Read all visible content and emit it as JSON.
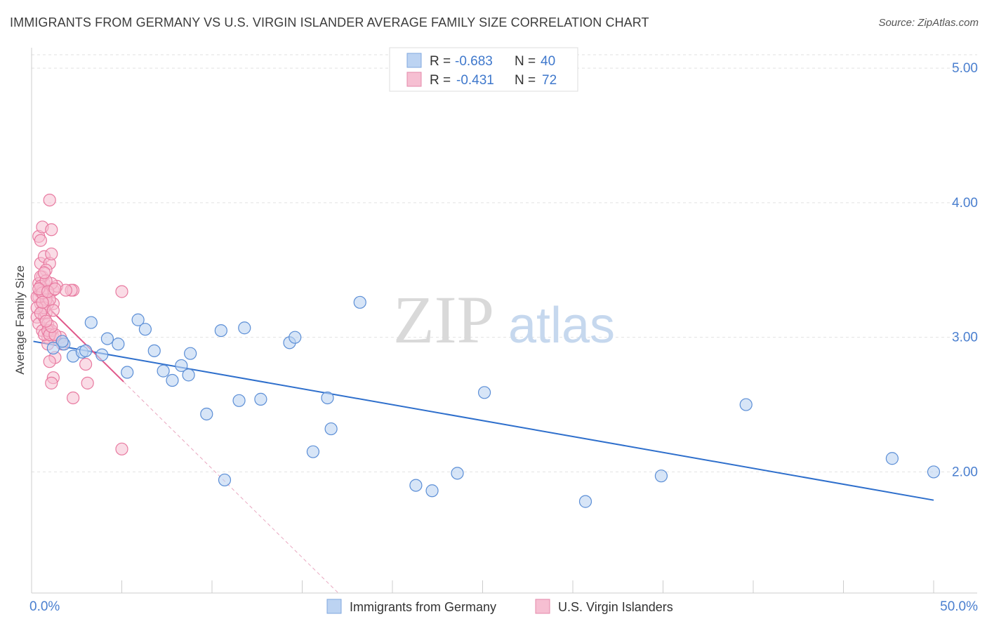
{
  "title": "IMMIGRANTS FROM GERMANY VS U.S. VIRGIN ISLANDER AVERAGE FAMILY SIZE CORRELATION CHART",
  "source": "Source: ZipAtlas.com",
  "watermark": {
    "zip": "ZIP",
    "atlas": "atlas"
  },
  "colors": {
    "blue": "#5b8ed6",
    "blue_fill": "#bcd3f2",
    "blue_line": "#2e6fcc",
    "pink": "#e87aa0",
    "pink_fill": "#f6bfd2",
    "pink_line": "#e0588a",
    "axis_text": "#4a7fcf",
    "grid": "#e2e2e2"
  },
  "legend": {
    "rows": [
      {
        "r_label": "R = ",
        "r_value": "-0.683",
        "n_label": "N = ",
        "n_value": "40"
      },
      {
        "r_label": "R = ",
        "r_value": "-0.431",
        "n_label": "N = ",
        "n_value": "72"
      }
    ]
  },
  "chart_data": {
    "type": "scatter",
    "title": "IMMIGRANTS FROM GERMANY VS U.S. VIRGIN ISLANDER AVERAGE FAMILY SIZE CORRELATION CHART",
    "xlabel": "",
    "ylabel": "Average Family Size",
    "xlim": [
      0,
      50
    ],
    "ylim": [
      1.1,
      5.1
    ],
    "x_tick_labels": [
      "0.0%",
      "50.0%"
    ],
    "y_ticks": [
      2.0,
      3.0,
      4.0,
      5.0
    ],
    "y_tick_labels": [
      "2.00",
      "3.00",
      "4.00",
      "5.00"
    ],
    "grid": true,
    "legend_position": "top-center",
    "series": [
      {
        "name": "Immigrants from Germany",
        "color": "#5b8ed6",
        "r": -0.683,
        "n": 40,
        "trend": {
          "x0": 0.1,
          "y0": 2.97,
          "x1": 50.0,
          "y1": 1.79
        },
        "points": [
          [
            1.8,
            2.95
          ],
          [
            1.7,
            2.97
          ],
          [
            2.3,
            2.86
          ],
          [
            3.3,
            3.11
          ],
          [
            2.8,
            2.89
          ],
          [
            3.9,
            2.87
          ],
          [
            4.2,
            2.99
          ],
          [
            4.8,
            2.95
          ],
          [
            5.3,
            2.74
          ],
          [
            5.9,
            3.13
          ],
          [
            6.3,
            3.06
          ],
          [
            6.8,
            2.9
          ],
          [
            7.3,
            2.75
          ],
          [
            7.8,
            2.68
          ],
          [
            8.3,
            2.79
          ],
          [
            8.7,
            2.72
          ],
          [
            8.8,
            2.88
          ],
          [
            9.7,
            2.43
          ],
          [
            10.5,
            3.05
          ],
          [
            10.7,
            1.94
          ],
          [
            11.5,
            2.53
          ],
          [
            11.8,
            3.07
          ],
          [
            12.7,
            2.54
          ],
          [
            14.3,
            2.96
          ],
          [
            14.6,
            3.0
          ],
          [
            15.6,
            2.15
          ],
          [
            16.4,
            2.55
          ],
          [
            16.6,
            2.32
          ],
          [
            18.2,
            3.26
          ],
          [
            21.3,
            1.9
          ],
          [
            22.2,
            1.86
          ],
          [
            23.6,
            1.99
          ],
          [
            25.1,
            2.59
          ],
          [
            30.7,
            1.78
          ],
          [
            34.9,
            1.97
          ],
          [
            39.6,
            2.5
          ],
          [
            47.7,
            2.1
          ],
          [
            50.0,
            2.0
          ],
          [
            1.2,
            2.92
          ],
          [
            3.0,
            2.9
          ]
        ]
      },
      {
        "name": "U.S. Virgin Islanders",
        "color": "#e87aa0",
        "r": -0.431,
        "n": 72,
        "trend": {
          "x0": 0.1,
          "y0": 3.33,
          "x1": 5.1,
          "y1": 2.67
        },
        "trend_extension": {
          "x0": 5.1,
          "y0": 2.67,
          "x1": 17.0,
          "y1": 1.1
        },
        "points": [
          [
            0.4,
            3.3
          ],
          [
            0.5,
            3.35
          ],
          [
            0.6,
            3.2
          ],
          [
            0.3,
            3.15
          ],
          [
            0.7,
            3.4
          ],
          [
            0.5,
            3.25
          ],
          [
            0.8,
            3.3
          ],
          [
            0.4,
            3.1
          ],
          [
            0.6,
            3.45
          ],
          [
            0.9,
            3.35
          ],
          [
            0.5,
            3.55
          ],
          [
            0.7,
            3.6
          ],
          [
            0.4,
            3.75
          ],
          [
            0.6,
            3.82
          ],
          [
            0.5,
            3.72
          ],
          [
            1.0,
            3.55
          ],
          [
            1.1,
            3.62
          ],
          [
            1.1,
            3.8
          ],
          [
            1.0,
            4.02
          ],
          [
            0.8,
            3.5
          ],
          [
            0.6,
            3.05
          ],
          [
            0.9,
            3.0
          ],
          [
            1.0,
            3.05
          ],
          [
            1.2,
            3.0
          ],
          [
            0.9,
            2.95
          ],
          [
            1.3,
            2.85
          ],
          [
            1.0,
            2.82
          ],
          [
            1.2,
            2.7
          ],
          [
            1.1,
            2.66
          ],
          [
            0.7,
            3.15
          ],
          [
            0.8,
            3.18
          ],
          [
            1.2,
            3.35
          ],
          [
            1.4,
            3.38
          ],
          [
            1.2,
            3.25
          ],
          [
            1.6,
            3.0
          ],
          [
            2.3,
            3.35
          ],
          [
            2.2,
            3.35
          ],
          [
            1.9,
            3.35
          ],
          [
            1.1,
            3.4
          ],
          [
            0.9,
            3.25
          ],
          [
            0.4,
            3.4
          ],
          [
            0.5,
            3.45
          ],
          [
            0.3,
            3.3
          ],
          [
            0.6,
            3.35
          ],
          [
            0.8,
            3.28
          ],
          [
            0.9,
            3.1
          ],
          [
            1.1,
            3.05
          ],
          [
            0.7,
            3.02
          ],
          [
            0.9,
            3.05
          ],
          [
            1.0,
            3.02
          ],
          [
            1.3,
            3.02
          ],
          [
            0.5,
            3.38
          ],
          [
            0.7,
            3.22
          ],
          [
            0.8,
            3.42
          ],
          [
            1.0,
            3.28
          ],
          [
            2.3,
            2.55
          ],
          [
            3.0,
            2.8
          ],
          [
            3.1,
            2.66
          ],
          [
            1.7,
            2.95
          ],
          [
            5.0,
            2.17
          ],
          [
            5.0,
            3.34
          ],
          [
            0.3,
            3.22
          ],
          [
            0.6,
            3.33
          ],
          [
            0.7,
            3.48
          ],
          [
            1.2,
            3.2
          ],
          [
            0.4,
            3.36
          ],
          [
            0.5,
            3.18
          ],
          [
            0.9,
            3.34
          ],
          [
            1.1,
            3.08
          ],
          [
            0.6,
            3.26
          ],
          [
            0.8,
            3.12
          ],
          [
            1.3,
            3.36
          ]
        ]
      }
    ]
  }
}
